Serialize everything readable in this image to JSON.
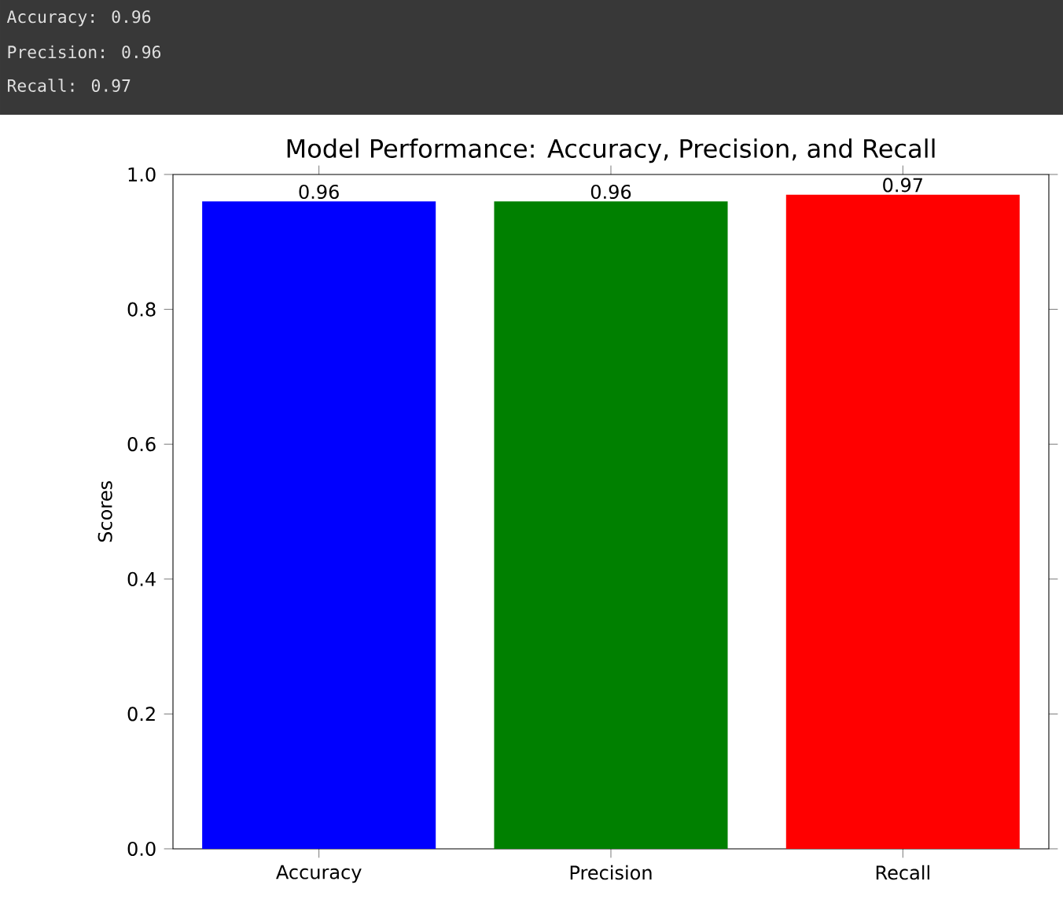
{
  "chart_data": {
    "type": "bar",
    "title": "Model Performance: Accuracy, Precision, and Recall",
    "ylabel": "Scores",
    "categories": [
      "Accuracy",
      "Precision",
      "Recall"
    ],
    "values": [
      0.96,
      0.96,
      0.97
    ],
    "colors": [
      "#0000ff",
      "#008000",
      "#ff0000"
    ],
    "ylim": [
      0,
      1
    ],
    "yticks": [
      {
        "value": 0,
        "label": "0.0"
      },
      {
        "value": 0.2,
        "label": "0.2"
      },
      {
        "value": 0.4,
        "label": "0.4"
      },
      {
        "value": 0.6,
        "label": "0.6"
      },
      {
        "value": 0.8,
        "label": "0.8"
      },
      {
        "value": 1,
        "label": "1.0"
      }
    ],
    "data_labels": true,
    "annotations": [
      "Accuracy: 0.96",
      "Precision: 0.96",
      "Recall: 0.97"
    ]
  }
}
